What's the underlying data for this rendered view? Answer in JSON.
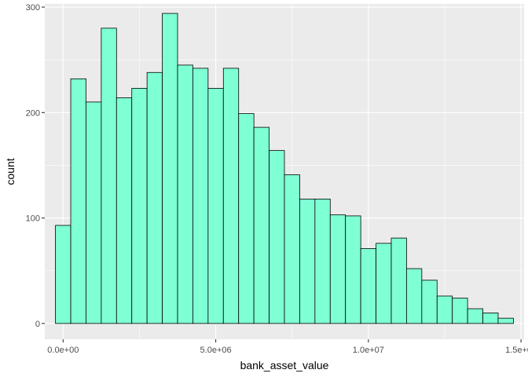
{
  "chart_data": {
    "type": "bar",
    "subtype": "histogram",
    "xlabel": "bank_asset_value",
    "ylabel": "count",
    "xlim": [
      -600000,
      15100000
    ],
    "ylim": [
      -15,
      303
    ],
    "x_ticks": [
      {
        "value": 0,
        "label": "0.0e+00"
      },
      {
        "value": 5000000,
        "label": "5.0e+06"
      },
      {
        "value": 10000000,
        "label": "1.0e+07"
      },
      {
        "value": 15000000,
        "label": "1.5e+07"
      }
    ],
    "y_ticks": [
      {
        "value": 0,
        "label": "0"
      },
      {
        "value": 100,
        "label": "100"
      },
      {
        "value": 200,
        "label": "200"
      },
      {
        "value": 300,
        "label": "300"
      }
    ],
    "grid": true,
    "bin_width": 500000,
    "bins_x0": [
      -250000,
      250000,
      750000,
      1250000,
      1750000,
      2250000,
      2750000,
      3250000,
      3750000,
      4250000,
      4750000,
      5250000,
      5750000,
      6250000,
      6750000,
      7250000,
      7750000,
      8250000,
      8750000,
      9250000,
      9750000,
      10250000,
      10750000,
      11250000,
      11750000,
      12250000,
      12750000,
      13250000,
      13750000,
      14250000,
      14750000
    ],
    "values": [
      93,
      232,
      210,
      280,
      214,
      223,
      238,
      294,
      245,
      242,
      223,
      242,
      199,
      186,
      164,
      141,
      118,
      118,
      103,
      102,
      71,
      76,
      81,
      52,
      41,
      26,
      24,
      14,
      10,
      5
    ],
    "colors": {
      "fill": "#7fffd4",
      "stroke": "#000000",
      "panel": "#ebebeb",
      "grid": "#ffffff"
    }
  }
}
